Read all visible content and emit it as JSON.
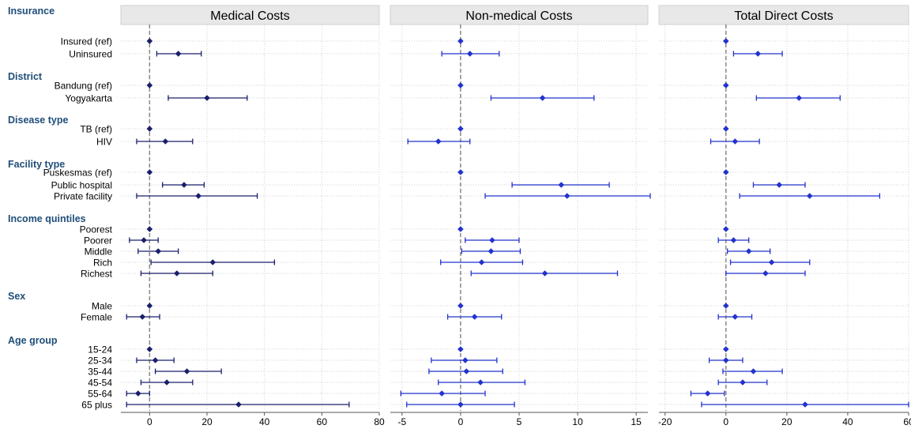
{
  "chart_data": {
    "type": "forest",
    "reference_line": 0,
    "grid": true,
    "colors": {
      "medical": "#1a1f6b",
      "nonmedical": "#2233cc",
      "total": "#2233cc",
      "group_label": "#1f4e79",
      "panel_header_bg": "#e8e8e8",
      "reference_line": "#888888"
    },
    "groups": [
      {
        "label": "Insurance",
        "items": [
          "Insured (ref)",
          "Uninsured"
        ]
      },
      {
        "label": "District",
        "items": [
          "Bandung (ref)",
          "Yogyakarta"
        ]
      },
      {
        "label": "Disease type",
        "items": [
          "TB (ref)",
          "HIV"
        ]
      },
      {
        "label": "Facility type",
        "items": [
          "Puskesmas (ref)",
          "Public hospital",
          "Private facility"
        ]
      },
      {
        "label": "Income quintiles",
        "items": [
          "Poorest",
          "Poorer",
          "Middle",
          "Rich",
          "Richest"
        ]
      },
      {
        "label": "Sex",
        "items": [
          "Male",
          "Female"
        ]
      },
      {
        "label": "Age group",
        "items": [
          "15-24",
          "25-34",
          "35-44",
          "45-54",
          "55-64",
          "65 plus"
        ]
      }
    ],
    "panels": [
      {
        "key": "medical",
        "title": "Medical Costs",
        "xlim": [
          -10,
          80
        ],
        "xticks": [
          0,
          20,
          40,
          60,
          80
        ],
        "estimates": [
          [
            0,
            0,
            0
          ],
          [
            10,
            2.5,
            18
          ],
          [
            0,
            0,
            0
          ],
          [
            20,
            6.5,
            34
          ],
          [
            0,
            0,
            0
          ],
          [
            5.5,
            -4.5,
            15
          ],
          [
            0,
            0,
            0
          ],
          [
            12,
            4.5,
            19
          ],
          [
            17,
            -4.5,
            37.5
          ],
          [
            0,
            0,
            0
          ],
          [
            -2,
            -7,
            3
          ],
          [
            3,
            -4,
            10
          ],
          [
            22,
            0.5,
            43.5
          ],
          [
            9.5,
            -3,
            22
          ],
          [
            0,
            0,
            0
          ],
          [
            -2.5,
            -8,
            3.5
          ],
          [
            0,
            0,
            0
          ],
          [
            2,
            -4.5,
            8.5
          ],
          [
            13,
            2,
            25
          ],
          [
            6,
            -3,
            15
          ],
          [
            -4,
            -8,
            0
          ],
          [
            31,
            -8,
            69.5
          ]
        ]
      },
      {
        "key": "nonmedical",
        "title": "Non-medical Costs",
        "xlim": [
          -6,
          16
        ],
        "xticks": [
          -5,
          0,
          5,
          10,
          15
        ],
        "estimates": [
          [
            0,
            0,
            0
          ],
          [
            0.8,
            -1.6,
            3.3
          ],
          [
            0,
            0,
            0
          ],
          [
            7,
            2.6,
            11.4
          ],
          [
            0,
            0,
            0
          ],
          [
            -1.9,
            -4.5,
            0.8
          ],
          [
            0,
            0,
            0
          ],
          [
            8.6,
            4.4,
            12.7
          ],
          [
            9.1,
            2.1,
            16.2
          ],
          [
            0,
            0,
            0
          ],
          [
            2.7,
            0.4,
            5
          ],
          [
            2.6,
            0.1,
            5.1
          ],
          [
            1.8,
            -1.7,
            5.3
          ],
          [
            7.2,
            0.9,
            13.4
          ],
          [
            0,
            0,
            0
          ],
          [
            1.2,
            -1.1,
            3.5
          ],
          [
            0,
            0,
            0
          ],
          [
            0.4,
            -2.5,
            3.1
          ],
          [
            0.5,
            -2.7,
            3.6
          ],
          [
            1.7,
            -1.9,
            5.5
          ],
          [
            -1.6,
            -5.1,
            2.1
          ],
          [
            0,
            -4.6,
            4.6
          ]
        ]
      },
      {
        "key": "total",
        "title": "Total Direct Costs",
        "xlim": [
          -22,
          60
        ],
        "xticks": [
          -20,
          0,
          20,
          40,
          60
        ],
        "estimates": [
          [
            0,
            0,
            0
          ],
          [
            10.5,
            2.5,
            18.5
          ],
          [
            0,
            0,
            0
          ],
          [
            24,
            10,
            37.5
          ],
          [
            0,
            0,
            0
          ],
          [
            3,
            -5,
            11
          ],
          [
            0,
            0,
            0
          ],
          [
            17.5,
            9,
            26
          ],
          [
            27.5,
            4.5,
            50.5
          ],
          [
            0,
            0,
            0
          ],
          [
            2.5,
            -2.5,
            7.5
          ],
          [
            7.5,
            0.5,
            14.5
          ],
          [
            15,
            1.5,
            27.5
          ],
          [
            13,
            0,
            26
          ],
          [
            0,
            0,
            0
          ],
          [
            3,
            -2.5,
            8.5
          ],
          [
            0,
            0,
            0
          ],
          [
            0,
            -5.5,
            5.5
          ],
          [
            9,
            -1,
            18.5
          ],
          [
            5.5,
            -2.5,
            13.5
          ],
          [
            -6,
            -11.5,
            -0.5
          ],
          [
            26,
            -8,
            60
          ]
        ]
      }
    ]
  }
}
